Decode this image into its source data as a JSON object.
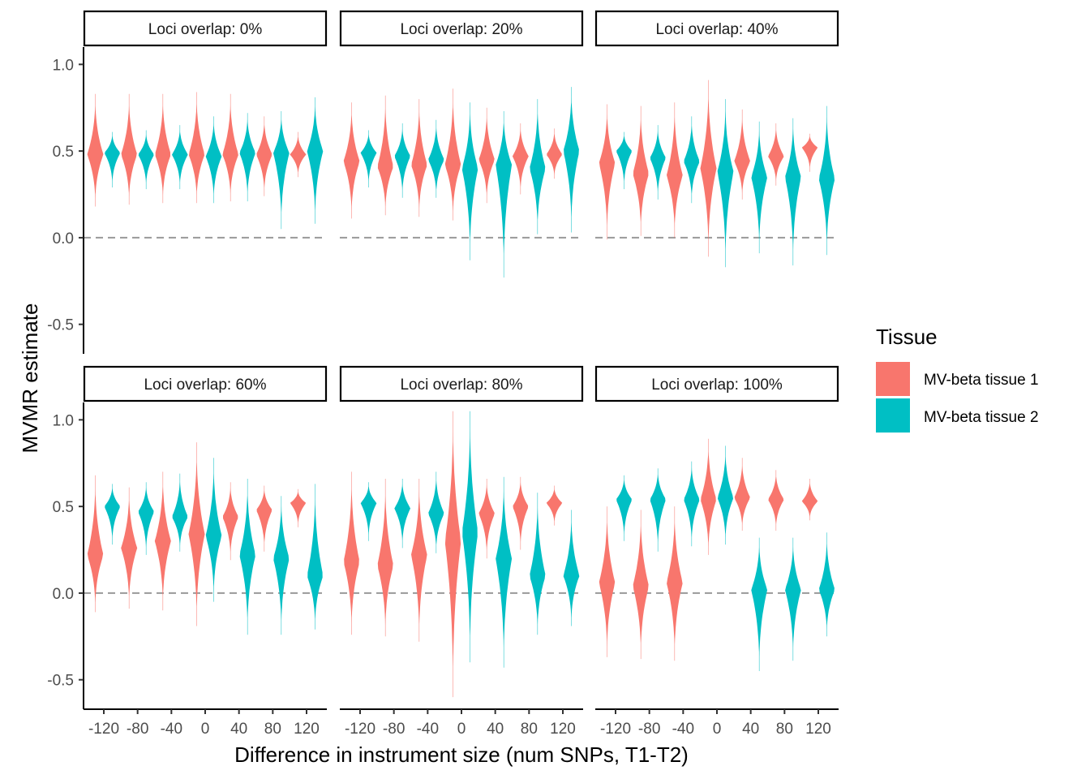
{
  "chart_data": {
    "type": "violin",
    "xlabel": "Difference in instrument size (num SNPs, T1-T2)",
    "ylabel": "MVMR estimate",
    "x_ticks": [
      "-120",
      "-80",
      "-40",
      "0",
      "40",
      "80",
      "120"
    ],
    "y_ticks": [
      "-0.5",
      "0.0",
      "0.5",
      "1.0"
    ],
    "ylim": [
      -0.67,
      1.1
    ],
    "reference_line": 0.0,
    "legend": {
      "title": "Tissue",
      "entries": [
        {
          "label": "MV-beta tissue 1",
          "color": "#F8766D"
        },
        {
          "label": "MV-beta tissue 2",
          "color": "#00BFC4"
        }
      ],
      "position": "right"
    },
    "panels": [
      {
        "title": "Loci overlap: 0%",
        "tissue1": [
          [
            0.18,
            0.48,
            0.83
          ],
          [
            0.19,
            0.48,
            0.83
          ],
          [
            0.2,
            0.48,
            0.83
          ],
          [
            0.2,
            0.48,
            0.84
          ],
          [
            0.21,
            0.48,
            0.83
          ],
          [
            0.24,
            0.48,
            0.7
          ],
          [
            0.35,
            0.48,
            0.61
          ]
        ],
        "tissue2": [
          [
            0.29,
            0.49,
            0.61
          ],
          [
            0.28,
            0.48,
            0.62
          ],
          [
            0.28,
            0.48,
            0.65
          ],
          [
            0.2,
            0.47,
            0.7
          ],
          [
            0.21,
            0.49,
            0.72
          ],
          [
            0.05,
            0.49,
            0.73
          ],
          [
            0.08,
            0.5,
            0.81
          ]
        ]
      },
      {
        "title": "Loci overlap: 20%",
        "tissue1": [
          [
            0.11,
            0.44,
            0.78
          ],
          [
            0.13,
            0.41,
            0.82
          ],
          [
            0.12,
            0.42,
            0.8
          ],
          [
            0.1,
            0.42,
            0.86
          ],
          [
            0.2,
            0.45,
            0.75
          ],
          [
            0.25,
            0.47,
            0.66
          ],
          [
            0.34,
            0.48,
            0.63
          ]
        ],
        "tissue2": [
          [
            0.29,
            0.49,
            0.62
          ],
          [
            0.23,
            0.47,
            0.66
          ],
          [
            0.23,
            0.45,
            0.68
          ],
          [
            -0.13,
            0.4,
            0.78
          ],
          [
            -0.23,
            0.42,
            0.73
          ],
          [
            0.02,
            0.4,
            0.8
          ],
          [
            0.03,
            0.5,
            0.87
          ]
        ]
      },
      {
        "title": "Loci overlap: 40%",
        "tissue1": [
          [
            -0.01,
            0.43,
            0.77
          ],
          [
            0.01,
            0.37,
            0.76
          ],
          [
            0.0,
            0.36,
            0.78
          ],
          [
            -0.11,
            0.4,
            0.91
          ],
          [
            0.22,
            0.44,
            0.74
          ],
          [
            0.3,
            0.47,
            0.66
          ],
          [
            0.38,
            0.52,
            0.6
          ]
        ],
        "tissue2": [
          [
            0.28,
            0.5,
            0.61
          ],
          [
            0.22,
            0.46,
            0.65
          ],
          [
            0.2,
            0.44,
            0.7
          ],
          [
            -0.17,
            0.38,
            0.8
          ],
          [
            -0.09,
            0.35,
            0.67
          ],
          [
            -0.16,
            0.35,
            0.69
          ],
          [
            -0.1,
            0.34,
            0.76
          ]
        ]
      },
      {
        "title": "Loci overlap: 60%",
        "tissue1": [
          [
            -0.11,
            0.22,
            0.68
          ],
          [
            -0.09,
            0.26,
            0.61
          ],
          [
            -0.1,
            0.3,
            0.7
          ],
          [
            -0.19,
            0.34,
            0.87
          ],
          [
            0.19,
            0.44,
            0.64
          ],
          [
            0.24,
            0.48,
            0.62
          ],
          [
            0.38,
            0.52,
            0.6
          ]
        ],
        "tissue2": [
          [
            0.28,
            0.5,
            0.63
          ],
          [
            0.22,
            0.47,
            0.64
          ],
          [
            0.24,
            0.44,
            0.69
          ],
          [
            -0.05,
            0.33,
            0.78
          ],
          [
            -0.24,
            0.22,
            0.66
          ],
          [
            -0.24,
            0.2,
            0.56
          ],
          [
            -0.21,
            0.1,
            0.63
          ]
        ]
      },
      {
        "title": "Loci overlap: 80%",
        "tissue1": [
          [
            -0.24,
            0.18,
            0.7
          ],
          [
            -0.25,
            0.16,
            0.66
          ],
          [
            -0.28,
            0.22,
            0.66
          ],
          [
            -0.6,
            0.3,
            1.05
          ],
          [
            0.2,
            0.46,
            0.66
          ],
          [
            0.25,
            0.5,
            0.67
          ],
          [
            0.39,
            0.52,
            0.62
          ]
        ],
        "tissue2": [
          [
            0.3,
            0.52,
            0.64
          ],
          [
            0.26,
            0.49,
            0.66
          ],
          [
            0.23,
            0.46,
            0.7
          ],
          [
            -0.4,
            0.35,
            1.05
          ],
          [
            -0.43,
            0.2,
            0.67
          ],
          [
            -0.24,
            0.1,
            0.58
          ],
          [
            -0.19,
            0.1,
            0.48
          ]
        ]
      },
      {
        "title": "Loci overlap: 100%",
        "tissue1": [
          [
            -0.37,
            0.06,
            0.5
          ],
          [
            -0.38,
            0.04,
            0.48
          ],
          [
            -0.39,
            0.06,
            0.5
          ],
          [
            0.22,
            0.54,
            0.89
          ],
          [
            0.36,
            0.55,
            0.78
          ],
          [
            0.36,
            0.54,
            0.71
          ],
          [
            0.42,
            0.53,
            0.66
          ]
        ],
        "tissue2": [
          [
            0.3,
            0.54,
            0.68
          ],
          [
            0.24,
            0.54,
            0.72
          ],
          [
            0.27,
            0.54,
            0.76
          ],
          [
            0.28,
            0.55,
            0.85
          ],
          [
            -0.45,
            0.02,
            0.32
          ],
          [
            -0.39,
            0.02,
            0.32
          ],
          [
            -0.25,
            0.02,
            0.35
          ]
        ]
      }
    ]
  }
}
